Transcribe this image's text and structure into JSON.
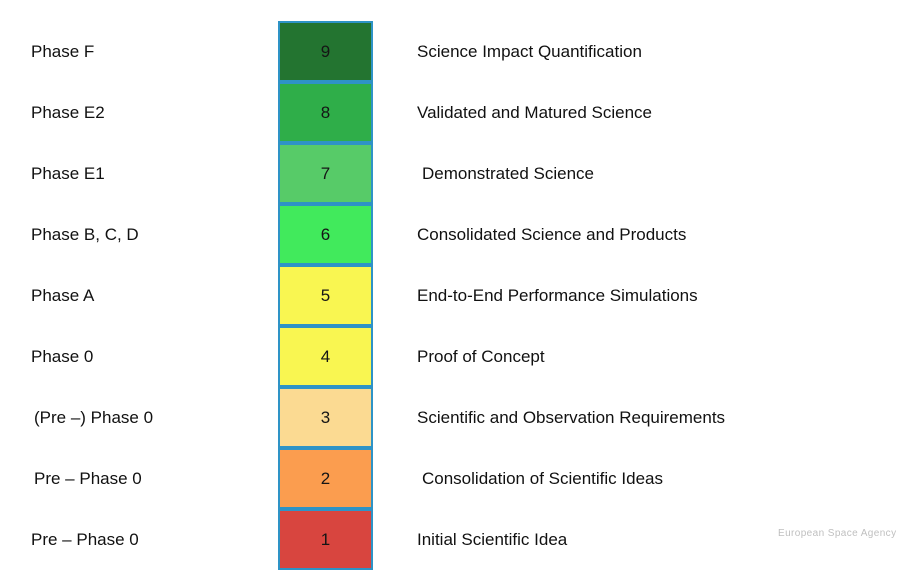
{
  "diagram": {
    "type": "readiness-level-scale",
    "box_border_color": "#2e93c6",
    "watermark": "European Space Agency",
    "rows": [
      {
        "phase": "Phase F",
        "level": "9",
        "color": "#237430",
        "description": "Science Impact Quantification"
      },
      {
        "phase": "Phase E2",
        "level": "8",
        "color": "#2fae49",
        "description": "Validated and Matured Science"
      },
      {
        "phase": "Phase E1",
        "level": "7",
        "color": "#57cb68",
        "description": "Demonstrated Science"
      },
      {
        "phase": "Phase B, C, D",
        "level": "6",
        "color": "#41ea5c",
        "description": "Consolidated Science and Products"
      },
      {
        "phase": "Phase A",
        "level": "5",
        "color": "#f9f651",
        "description": "End-to-End Performance Simulations"
      },
      {
        "phase": "Phase 0",
        "level": "4",
        "color": "#f9f651",
        "description": "Proof of Concept"
      },
      {
        "phase": "(Pre –) Phase 0",
        "level": "3",
        "color": "#fbda92",
        "description": "Scientific and Observation Requirements"
      },
      {
        "phase": "Pre – Phase 0",
        "level": "2",
        "color": "#fb9d4f",
        "description": "Consolidation of Scientific Ideas"
      },
      {
        "phase": "Pre – Phase 0",
        "level": "1",
        "color": "#d8453f",
        "description": "Initial Scientific Idea"
      }
    ]
  }
}
